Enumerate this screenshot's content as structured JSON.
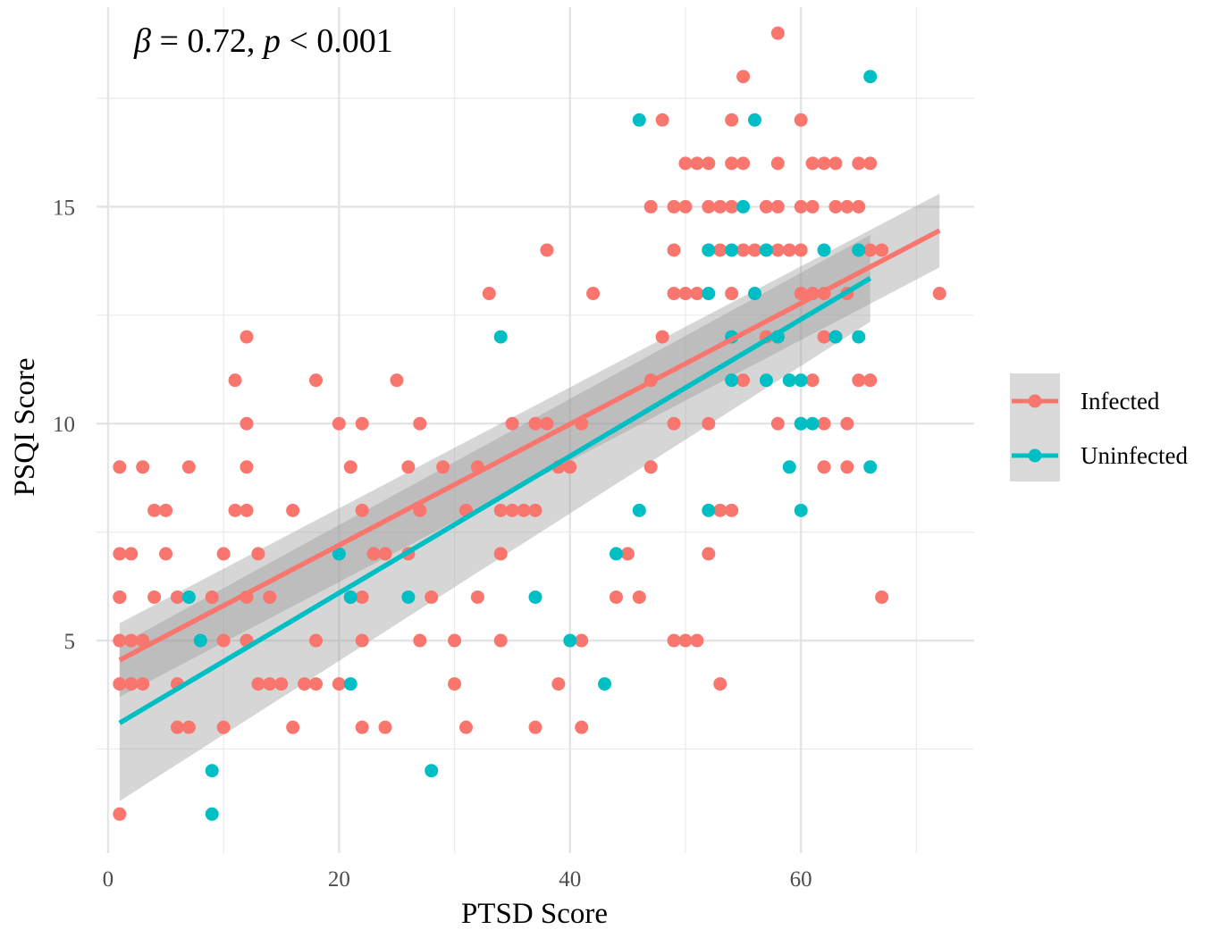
{
  "chart_data": {
    "type": "scatter",
    "annotation": {
      "beta_symbol": "β",
      "eq1": " = 0.72, ",
      "p_symbol": "p",
      "eq2": " < 0.001"
    },
    "xlabel": "PTSD Score",
    "ylabel": "PSQI Score",
    "xlim": [
      -1,
      75
    ],
    "ylim": [
      0.1,
      19.6
    ],
    "x_ticks": [
      0,
      20,
      40,
      60
    ],
    "y_ticks": [
      5,
      10,
      15
    ],
    "x_ticks_minor": [
      10,
      30,
      50,
      70
    ],
    "y_ticks_minor": [
      2.5,
      7.5,
      12.5,
      17.5
    ],
    "grid": true,
    "legend": {
      "position": "right",
      "title": ""
    },
    "series": [
      {
        "name": "Infected",
        "color": "#F8766D",
        "points": [
          [
            1,
            1
          ],
          [
            1,
            4
          ],
          [
            1,
            5
          ],
          [
            1,
            6
          ],
          [
            1,
            6
          ],
          [
            1,
            7
          ],
          [
            1,
            9
          ],
          [
            2,
            4
          ],
          [
            2,
            5
          ],
          [
            2,
            7
          ],
          [
            3,
            4
          ],
          [
            3,
            5
          ],
          [
            3,
            9
          ],
          [
            4,
            6
          ],
          [
            4,
            8
          ],
          [
            5,
            7
          ],
          [
            5,
            8
          ],
          [
            6,
            3
          ],
          [
            6,
            4
          ],
          [
            6,
            6
          ],
          [
            7,
            3
          ],
          [
            7,
            9
          ],
          [
            9,
            6
          ],
          [
            10,
            3
          ],
          [
            10,
            5
          ],
          [
            10,
            7
          ],
          [
            11,
            8
          ],
          [
            11,
            11
          ],
          [
            12,
            5
          ],
          [
            12,
            6
          ],
          [
            12,
            8
          ],
          [
            12,
            9
          ],
          [
            12,
            10
          ],
          [
            12,
            12
          ],
          [
            13,
            4
          ],
          [
            13,
            7
          ],
          [
            14,
            4
          ],
          [
            14,
            6
          ],
          [
            15,
            4
          ],
          [
            16,
            3
          ],
          [
            16,
            8
          ],
          [
            17,
            4
          ],
          [
            18,
            4
          ],
          [
            18,
            5
          ],
          [
            18,
            11
          ],
          [
            20,
            4
          ],
          [
            20,
            10
          ],
          [
            21,
            6
          ],
          [
            21,
            9
          ],
          [
            22,
            3
          ],
          [
            22,
            5
          ],
          [
            22,
            6
          ],
          [
            22,
            8
          ],
          [
            22,
            10
          ],
          [
            23,
            7
          ],
          [
            24,
            3
          ],
          [
            24,
            7
          ],
          [
            25,
            11
          ],
          [
            26,
            7
          ],
          [
            26,
            9
          ],
          [
            27,
            5
          ],
          [
            27,
            8
          ],
          [
            27,
            10
          ],
          [
            28,
            6
          ],
          [
            29,
            9
          ],
          [
            30,
            4
          ],
          [
            30,
            5
          ],
          [
            31,
            3
          ],
          [
            31,
            8
          ],
          [
            32,
            6
          ],
          [
            32,
            9
          ],
          [
            33,
            13
          ],
          [
            34,
            5
          ],
          [
            34,
            7
          ],
          [
            34,
            8
          ],
          [
            35,
            8
          ],
          [
            35,
            10
          ],
          [
            36,
            8
          ],
          [
            37,
            3
          ],
          [
            37,
            8
          ],
          [
            37,
            10
          ],
          [
            38,
            10
          ],
          [
            38,
            14
          ],
          [
            39,
            4
          ],
          [
            39,
            9
          ],
          [
            40,
            9
          ],
          [
            41,
            3
          ],
          [
            41,
            5
          ],
          [
            41,
            10
          ],
          [
            42,
            13
          ],
          [
            44,
            6
          ],
          [
            45,
            7
          ],
          [
            46,
            6
          ],
          [
            47,
            9
          ],
          [
            47,
            11
          ],
          [
            47,
            15
          ],
          [
            48,
            12
          ],
          [
            48,
            17
          ],
          [
            49,
            5
          ],
          [
            49,
            10
          ],
          [
            49,
            13
          ],
          [
            49,
            14
          ],
          [
            49,
            15
          ],
          [
            50,
            5
          ],
          [
            50,
            13
          ],
          [
            50,
            15
          ],
          [
            50,
            16
          ],
          [
            51,
            5
          ],
          [
            51,
            13
          ],
          [
            51,
            16
          ],
          [
            52,
            7
          ],
          [
            52,
            10
          ],
          [
            52,
            14
          ],
          [
            52,
            15
          ],
          [
            52,
            16
          ],
          [
            53,
            4
          ],
          [
            53,
            8
          ],
          [
            53,
            14
          ],
          [
            53,
            15
          ],
          [
            54,
            8
          ],
          [
            54,
            13
          ],
          [
            54,
            15
          ],
          [
            54,
            16
          ],
          [
            54,
            17
          ],
          [
            55,
            11
          ],
          [
            55,
            14
          ],
          [
            55,
            16
          ],
          [
            55,
            18
          ],
          [
            56,
            14
          ],
          [
            57,
            12
          ],
          [
            57,
            14
          ],
          [
            57,
            15
          ],
          [
            58,
            10
          ],
          [
            58,
            12
          ],
          [
            58,
            14
          ],
          [
            58,
            15
          ],
          [
            58,
            16
          ],
          [
            58,
            19
          ],
          [
            59,
            11
          ],
          [
            59,
            14
          ],
          [
            60,
            10
          ],
          [
            60,
            13
          ],
          [
            60,
            14
          ],
          [
            60,
            15
          ],
          [
            60,
            17
          ],
          [
            61,
            11
          ],
          [
            61,
            13
          ],
          [
            61,
            15
          ],
          [
            61,
            16
          ],
          [
            62,
            9
          ],
          [
            62,
            10
          ],
          [
            62,
            12
          ],
          [
            62,
            13
          ],
          [
            62,
            16
          ],
          [
            63,
            12
          ],
          [
            63,
            15
          ],
          [
            63,
            16
          ],
          [
            64,
            9
          ],
          [
            64,
            10
          ],
          [
            64,
            13
          ],
          [
            64,
            15
          ],
          [
            65,
            11
          ],
          [
            65,
            14
          ],
          [
            65,
            15
          ],
          [
            65,
            16
          ],
          [
            66,
            11
          ],
          [
            66,
            14
          ],
          [
            66,
            16
          ],
          [
            67,
            6
          ],
          [
            67,
            14
          ],
          [
            72,
            13
          ]
        ],
        "fit": {
          "x": [
            1,
            72
          ],
          "y": [
            4.55,
            14.45
          ]
        },
        "ci_band": {
          "x": [
            1,
            72
          ],
          "upper": [
            5.4,
            15.3
          ],
          "lower": [
            3.7,
            13.6
          ]
        }
      },
      {
        "name": "Uninfected",
        "color": "#00BFC4",
        "points": [
          [
            7,
            6
          ],
          [
            8,
            5
          ],
          [
            9,
            1
          ],
          [
            9,
            2
          ],
          [
            20,
            7
          ],
          [
            21,
            4
          ],
          [
            21,
            6
          ],
          [
            26,
            6
          ],
          [
            28,
            2
          ],
          [
            34,
            12
          ],
          [
            37,
            6
          ],
          [
            40,
            5
          ],
          [
            43,
            4
          ],
          [
            44,
            7
          ],
          [
            46,
            8
          ],
          [
            46,
            17
          ],
          [
            52,
            8
          ],
          [
            52,
            13
          ],
          [
            52,
            14
          ],
          [
            54,
            11
          ],
          [
            54,
            12
          ],
          [
            54,
            14
          ],
          [
            55,
            15
          ],
          [
            56,
            13
          ],
          [
            56,
            17
          ],
          [
            57,
            11
          ],
          [
            57,
            14
          ],
          [
            58,
            12
          ],
          [
            59,
            9
          ],
          [
            59,
            11
          ],
          [
            60,
            8
          ],
          [
            60,
            10
          ],
          [
            60,
            11
          ],
          [
            61,
            10
          ],
          [
            62,
            14
          ],
          [
            63,
            12
          ],
          [
            65,
            12
          ],
          [
            65,
            14
          ],
          [
            66,
            9
          ],
          [
            66,
            18
          ]
        ],
        "fit": {
          "x": [
            1,
            66
          ],
          "y": [
            3.1,
            13.35
          ]
        },
        "ci_band": {
          "x": [
            1,
            66
          ],
          "upper": [
            4.9,
            14.35
          ],
          "lower": [
            1.3,
            12.35
          ]
        }
      }
    ]
  }
}
